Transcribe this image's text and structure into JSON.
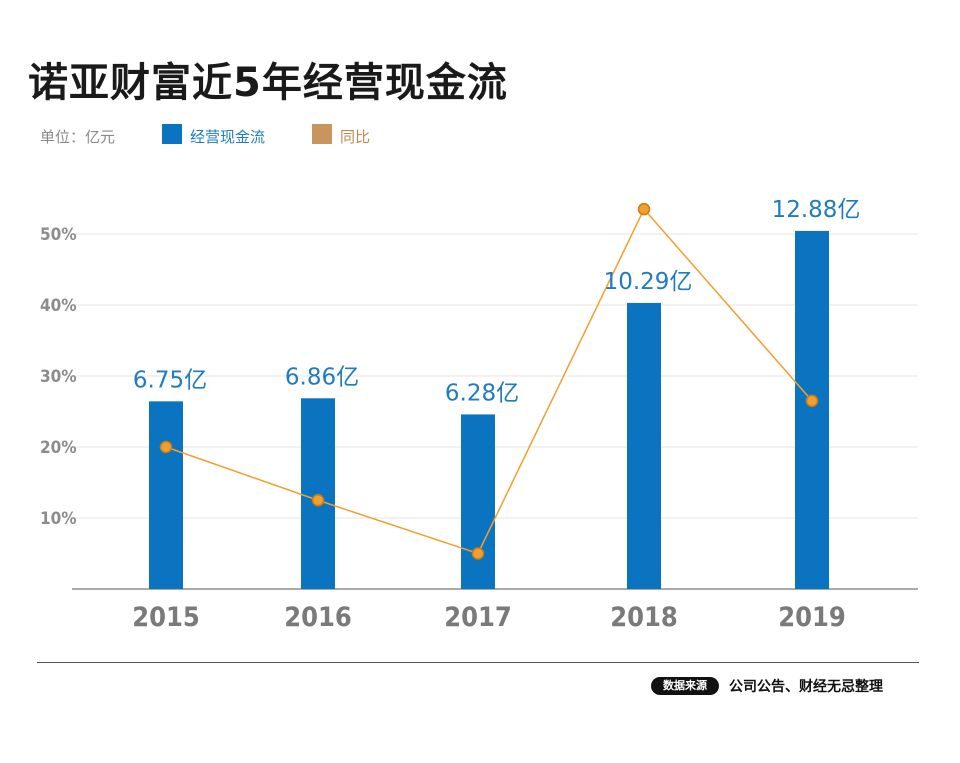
{
  "title": "诺亚财富近5年经营现金流",
  "legend": {
    "unit": "单位：亿元",
    "bar_label": "经营现金流",
    "line_label": "同比"
  },
  "colors": {
    "bar": "#0b74c0",
    "line": "#f0a030",
    "point_stroke": "#d07a10",
    "bar_label": "#1f7cc0",
    "axis_text": "#8c8c8c"
  },
  "chart_data": {
    "type": "bar",
    "title": "诺亚财富近5年经营现金流",
    "categories": [
      "2015",
      "2016",
      "2017",
      "2018",
      "2019"
    ],
    "series": [
      {
        "name": "经营现金流",
        "type": "bar",
        "values": [
          6.75,
          6.86,
          6.28,
          10.29,
          12.88
        ],
        "value_labels": [
          "6.75亿",
          "6.86亿",
          "6.28亿",
          "10.29亿",
          "12.88亿"
        ]
      },
      {
        "name": "同比",
        "type": "line",
        "values": [
          20,
          12.5,
          5,
          53.5,
          26.5
        ]
      }
    ],
    "y_ticks": [
      "10%",
      "20%",
      "30%",
      "40%",
      "50%"
    ],
    "ylim": [
      0,
      57
    ],
    "bar_ylim": [
      0,
      13
    ],
    "grid": true
  },
  "footer": {
    "source_badge": "数据来源",
    "source_text": "公司公告、财经无忌整理"
  }
}
